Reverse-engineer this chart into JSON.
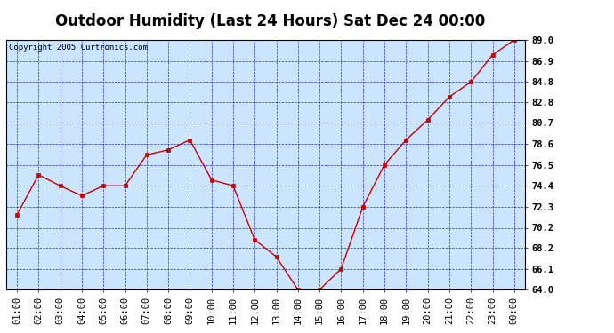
{
  "title": "Outdoor Humidity (Last 24 Hours) Sat Dec 24 00:00",
  "copyright": "Copyright 2005 Curtronics.com",
  "x_labels": [
    "01:00",
    "02:00",
    "03:00",
    "04:00",
    "05:00",
    "06:00",
    "07:00",
    "08:00",
    "09:00",
    "10:00",
    "11:00",
    "12:00",
    "13:00",
    "14:00",
    "15:00",
    "16:00",
    "17:00",
    "18:00",
    "19:00",
    "20:00",
    "21:00",
    "22:00",
    "23:00",
    "00:00"
  ],
  "y_values": [
    71.5,
    75.5,
    74.4,
    73.4,
    74.4,
    74.4,
    77.5,
    78.0,
    79.0,
    75.0,
    74.4,
    69.0,
    67.3,
    64.0,
    64.0,
    66.1,
    72.3,
    76.5,
    79.0,
    81.0,
    83.3,
    84.8,
    87.5,
    89.0
  ],
  "ylim": [
    64.0,
    89.0
  ],
  "y_ticks": [
    64.0,
    66.1,
    68.2,
    70.2,
    72.3,
    74.4,
    76.5,
    78.6,
    80.7,
    82.8,
    84.8,
    86.9,
    89.0
  ],
  "line_color": "#cc0000",
  "marker_color": "#cc0000",
  "bg_color": "#cce5ff",
  "outer_bg": "#ffffff",
  "grid_color": "#0000bb",
  "title_fontsize": 12,
  "tick_fontsize": 7.5,
  "copyright_fontsize": 6.5
}
